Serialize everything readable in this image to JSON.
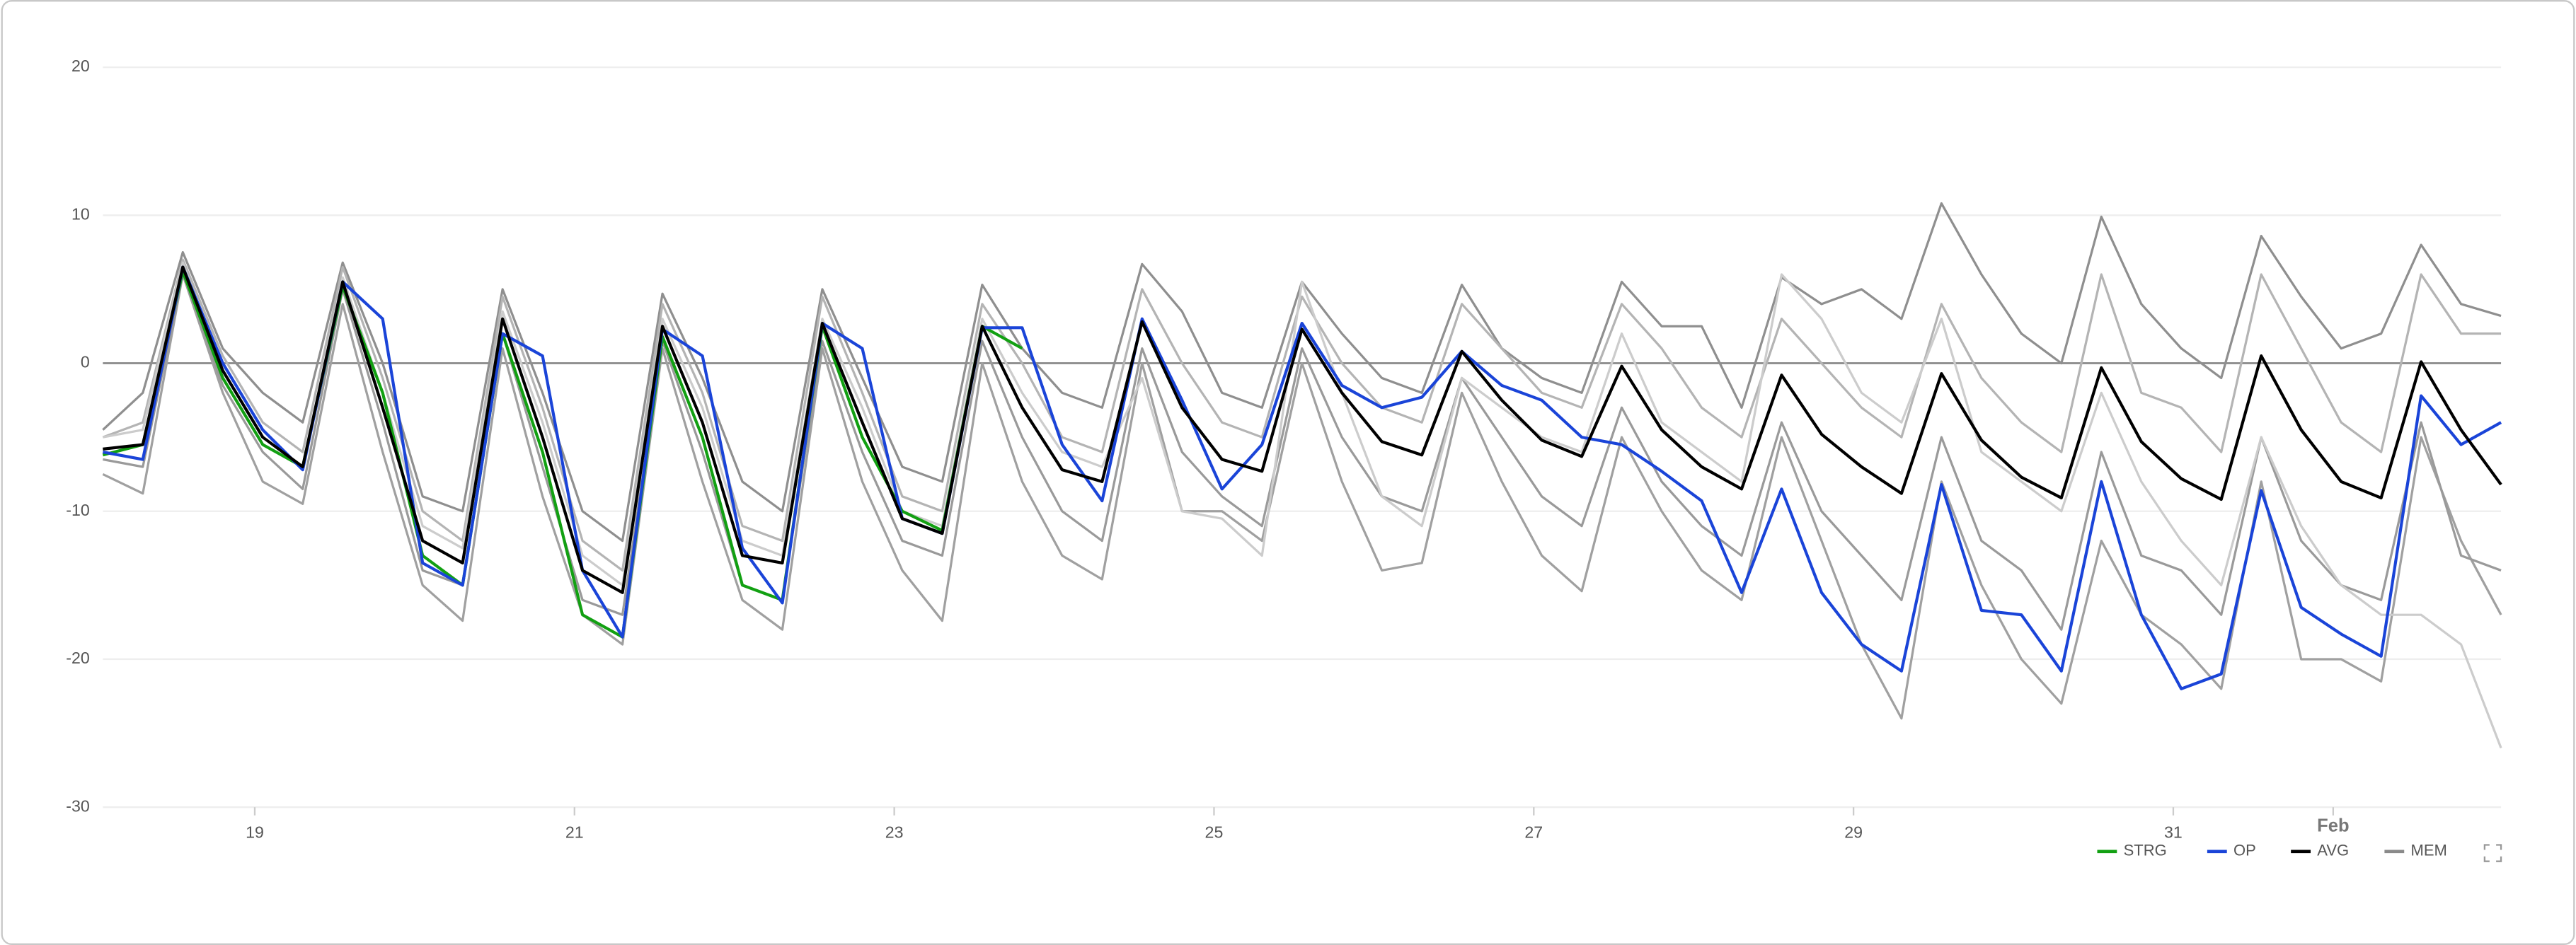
{
  "chart_data": {
    "type": "line",
    "x": [
      18.05,
      18.3,
      18.55,
      18.8,
      19.05,
      19.3,
      19.55,
      19.8,
      20.05,
      20.3,
      20.55,
      20.8,
      21.05,
      21.3,
      21.55,
      21.8,
      22.05,
      22.3,
      22.55,
      22.8,
      23.05,
      23.3,
      23.55,
      23.8,
      24.05,
      24.3,
      24.55,
      24.8,
      25.05,
      25.3,
      25.55,
      25.8,
      26.05,
      26.3,
      26.55,
      26.8,
      27.05,
      27.3,
      27.55,
      27.8,
      28.05,
      28.3,
      28.55,
      28.8,
      29.05,
      29.3,
      29.55,
      29.8,
      30.05,
      30.3,
      30.55,
      30.8,
      31.05,
      31.3,
      31.55,
      31.8,
      32.05,
      32.3,
      32.55,
      32.8,
      33.05
    ],
    "xlim": [
      18.05,
      33.05
    ],
    "xticks": [
      19,
      21,
      23,
      25,
      27,
      29,
      31,
      {
        "value": 32,
        "label": "Feb"
      }
    ],
    "ylim": [
      -30,
      20
    ],
    "yticks": [
      -30,
      -20,
      -10,
      0,
      10,
      20
    ],
    "grid": true,
    "legend": "bottom-right",
    "ensemble": {
      "name": "MEM",
      "color": "#8a8a8a",
      "members": [
        {
          "color": "#8f8f8f",
          "values": [
            -4.5,
            -2,
            7.5,
            1,
            -2,
            -4,
            6.8,
            0,
            -9,
            -10,
            5,
            -2,
            -10,
            -12,
            4.7,
            -1,
            -8,
            -10,
            5,
            -1,
            -7,
            -8,
            5.3,
            1,
            -2,
            -3,
            6.7,
            3.5,
            -2,
            -3,
            5.5,
            2,
            -1,
            -2,
            5.3,
            1,
            -1,
            -2,
            5.5,
            2.5,
            2.5,
            -3,
            5.8,
            4,
            5,
            3,
            10.8,
            6,
            2,
            0,
            9.9,
            4,
            1,
            -1,
            8.6,
            4.5,
            1,
            2,
            8,
            4,
            3.2
          ]
        },
        {
          "color": "#a0a0a0",
          "values": [
            -7.5,
            -8.8,
            6,
            -2,
            -8,
            -9.5,
            4,
            -6,
            -15,
            -17.4,
            1,
            -9,
            -17,
            -19,
            1,
            -8,
            -16,
            -18,
            1,
            -8,
            -14,
            -17.4,
            0,
            -8,
            -13,
            -14.6,
            0,
            -10,
            -10,
            -12,
            0,
            -8,
            -14,
            -13.5,
            -2,
            -8,
            -13,
            -15.4,
            -5,
            -10,
            -14,
            -16,
            -5,
            -12,
            -19,
            -24,
            -8,
            -15,
            -20,
            -23,
            -12,
            -17,
            -19,
            -22,
            -8,
            -20,
            -20,
            -21.5,
            -5,
            -12,
            -17
          ]
        },
        {
          "color": "#b4b4b4",
          "values": [
            -5,
            -4,
            7,
            0.5,
            -4,
            -6,
            6.5,
            -1,
            -10,
            -12,
            4.5,
            -3,
            -12,
            -14,
            4,
            -2,
            -11,
            -12,
            4.5,
            -2,
            -9,
            -10,
            4,
            0,
            -5,
            -6,
            5,
            0,
            -4,
            -5,
            4.5,
            0,
            -3,
            -4,
            4,
            1,
            -2,
            -3,
            4,
            1,
            -3,
            -5,
            3,
            0,
            -3,
            -5,
            4,
            -1,
            -4,
            -6,
            6,
            -2,
            -3,
            -6,
            6,
            1,
            -4,
            -6,
            6,
            2,
            2
          ]
        },
        {
          "color": "#9a9a9a",
          "values": [
            -6.5,
            -7,
            6,
            -1.5,
            -6,
            -8.5,
            5,
            -4,
            -14,
            -15,
            2,
            -7,
            -16,
            -17,
            1.5,
            -6,
            -15,
            -16,
            1.5,
            -6,
            -12,
            -13,
            1.5,
            -5,
            -10,
            -12,
            1,
            -6,
            -9,
            -11,
            1,
            -5,
            -9,
            -10,
            -1,
            -5,
            -9,
            -11,
            -3,
            -8,
            -11,
            -13,
            -4,
            -10,
            -13,
            -16,
            -5,
            -12,
            -14,
            -18,
            -6,
            -13,
            -14,
            -17,
            -5,
            -12,
            -15,
            -16,
            -4,
            -13,
            -14
          ]
        },
        {
          "color": "#cccccc",
          "values": [
            -5,
            -4.5,
            6.8,
            -0.5,
            -5,
            -7,
            5.8,
            -2,
            -11,
            -12.5,
            3.5,
            -4,
            -13,
            -15,
            3,
            -3,
            -12,
            -13,
            3,
            -3,
            -10,
            -11,
            3,
            -2,
            -6,
            -7,
            -1,
            -10,
            -10.5,
            -13,
            5.5,
            -2,
            -9,
            -11,
            -1,
            -3,
            -5,
            -6,
            2,
            -4,
            -6,
            -8,
            6,
            3,
            -2,
            -4,
            3,
            -6,
            -8,
            -10,
            -2,
            -8,
            -12,
            -15,
            -5,
            -11,
            -15,
            -17,
            -17,
            -19,
            -26
          ]
        }
      ]
    },
    "series": [
      {
        "name": "STRG",
        "color": "#12a012",
        "values": [
          -6.2,
          -5.5,
          6.2,
          -1,
          -5.5,
          -7,
          5.2,
          -2,
          -13,
          -15,
          2,
          -6,
          -17,
          -18.5,
          1.8,
          -5,
          -15,
          -16,
          2.5,
          -5,
          -10,
          -11.3,
          2.5,
          1,
          null,
          null,
          null,
          null,
          null,
          null,
          null,
          null,
          null,
          null,
          null,
          null,
          null,
          null,
          null,
          null,
          null,
          null,
          null,
          null,
          null,
          null,
          null,
          null,
          null,
          null,
          null,
          null,
          null,
          null,
          null,
          null,
          null,
          null,
          null,
          null,
          null
        ]
      },
      {
        "name": "OP",
        "color": "#1a44d8",
        "values": [
          -6,
          -6.5,
          6.5,
          0,
          -4.5,
          -7.2,
          5.5,
          3,
          -13.5,
          -15,
          2,
          0.5,
          -14,
          -18.5,
          2.3,
          0.5,
          -12.5,
          -16.2,
          2.7,
          1,
          -10.5,
          -11.5,
          2.4,
          2.4,
          -5.5,
          -9.3,
          3,
          -2.5,
          -8.5,
          -5.5,
          2.7,
          -1.5,
          -3,
          -2.3,
          0.8,
          -1.5,
          -2.5,
          -5,
          -5.5,
          -7.3,
          -9.3,
          -15.5,
          -8.5,
          -15.5,
          -19,
          -20.8,
          -8.2,
          -16.7,
          -17,
          -20.8,
          -8,
          -17,
          -22,
          -21,
          -8.6,
          -16.5,
          -18.3,
          -19.8,
          -2.2,
          -5.5,
          -4
        ]
      },
      {
        "name": "AVG",
        "color": "#000000",
        "values": [
          -5.8,
          -5.5,
          6.5,
          -0.5,
          -5,
          -7,
          5.5,
          -3,
          -12,
          -13.5,
          3,
          -5,
          -14,
          -15.5,
          2.5,
          -4,
          -13,
          -13.5,
          2.7,
          -4,
          -10.5,
          -11.5,
          2.5,
          -3,
          -7.2,
          -8,
          2.8,
          -3,
          -6.5,
          -7.3,
          2.3,
          -2,
          -5.3,
          -6.2,
          0.8,
          -2.5,
          -5.2,
          -6.3,
          -0.2,
          -4.5,
          -7,
          -8.5,
          -0.8,
          -4.8,
          -7,
          -8.8,
          -0.7,
          -5.2,
          -7.7,
          -9.1,
          -0.3,
          -5.3,
          -7.8,
          -9.2,
          0.5,
          -4.5,
          -8,
          -9.1,
          0.1,
          -4.5,
          -8.2
        ]
      }
    ]
  }
}
